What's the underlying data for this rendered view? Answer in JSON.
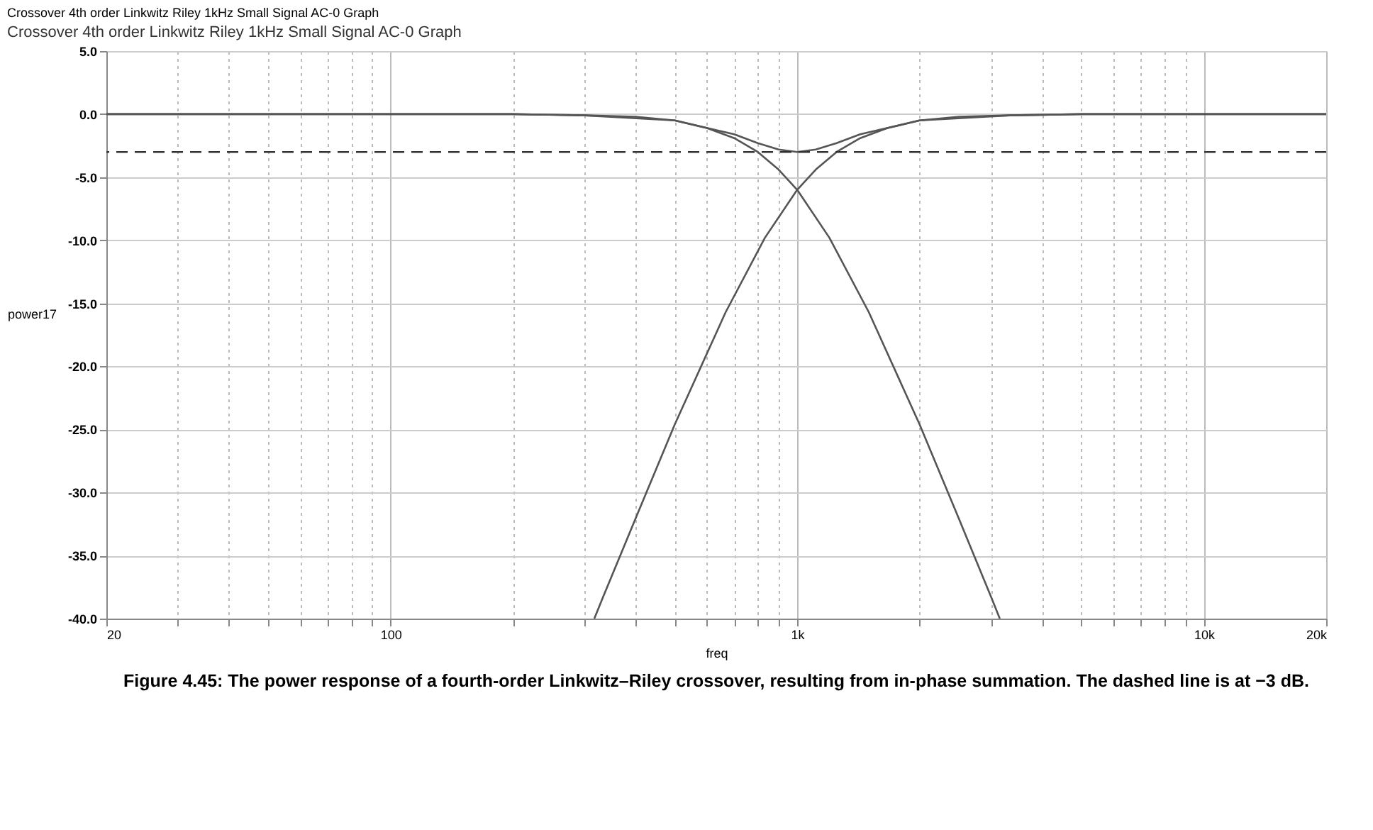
{
  "chart_data": {
    "type": "line",
    "title": "Crossover 4th order Linkwitz Riley 1kHz Small Signal AC-0 Graph",
    "subtitle": "Crossover 4th order Linkwitz Riley 1kHz Small Signal AC-0 Graph",
    "xlabel": "freq",
    "ylabel": "power17",
    "annotations": [
      "Figure 4.45: The power response of a fourth-order Linkwitz–Riley crossover, resulting from in-phase summation. The dashed line is at −3 dB."
    ],
    "log": "x",
    "grid": true,
    "marker": "none",
    "line_style": "solid",
    "xlim": [
      20,
      20000
    ],
    "xticks": [
      20,
      {
        "value": 30,
        "label": null
      },
      {
        "value": 40,
        "label": null
      },
      {
        "value": 50,
        "label": null
      },
      {
        "value": 60,
        "label": null
      },
      {
        "value": 70,
        "label": null
      },
      {
        "value": 80,
        "label": null
      },
      {
        "value": 90,
        "label": null
      },
      100,
      {
        "value": 200,
        "label": null
      },
      {
        "value": 300,
        "label": null
      },
      {
        "value": 400,
        "label": null
      },
      {
        "value": 500,
        "label": null
      },
      {
        "value": 600,
        "label": null
      },
      {
        "value": 700,
        "label": null
      },
      {
        "value": 800,
        "label": null
      },
      {
        "value": 900,
        "label": null
      },
      {
        "value": 1000,
        "label": "1k"
      },
      {
        "value": 2000,
        "label": null
      },
      {
        "value": 3000,
        "label": null
      },
      {
        "value": 4000,
        "label": null
      },
      {
        "value": 5000,
        "label": null
      },
      {
        "value": 6000,
        "label": null
      },
      {
        "value": 7000,
        "label": null
      },
      {
        "value": 8000,
        "label": null
      },
      {
        "value": 9000,
        "label": null
      },
      {
        "value": 10000,
        "label": "10k"
      },
      {
        "value": 20000,
        "label": "20k"
      }
    ],
    "ylim": [
      -40,
      5
    ],
    "yticks": [
      {
        "value": 5,
        "label": "5.0"
      },
      {
        "value": 0,
        "label": "0.0"
      },
      {
        "value": -5,
        "label": "-5.0"
      },
      {
        "value": -10,
        "label": "-10.0"
      },
      {
        "value": -15,
        "label": "-15.0"
      },
      {
        "value": -20,
        "label": "-20.0"
      },
      {
        "value": -25,
        "label": "-25.0"
      },
      {
        "value": -30,
        "label": "-30.0"
      },
      {
        "value": -35,
        "label": "-35.0"
      },
      {
        "value": -40,
        "label": "-40.0"
      }
    ],
    "ref_lines": [
      {
        "axis": "y",
        "value": -3,
        "color": "#333333",
        "line_style": "dashed"
      }
    ],
    "series": [
      {
        "color": "#555555",
        "x": [
          20,
          200,
          300,
          400,
          500,
          600,
          700,
          800,
          900,
          1000,
          1200,
          1500,
          2000,
          2500,
          3000,
          3150
        ],
        "values": [
          0,
          0,
          -0.1,
          -0.2,
          -0.5,
          -1.1,
          -1.9,
          -3.0,
          -4.4,
          -6.0,
          -9.8,
          -15.7,
          -24.6,
          -32.1,
          -38.3,
          -40.0
        ]
      },
      {
        "color": "#555555",
        "x": [
          317,
          333,
          400,
          500,
          667,
          833,
          1000,
          1111,
          1250,
          1429,
          1667,
          2000,
          2500,
          3333,
          5000,
          20000
        ],
        "values": [
          -40.0,
          -38.3,
          -32.1,
          -24.6,
          -15.7,
          -9.8,
          -6.0,
          -4.4,
          -3.0,
          -1.9,
          -1.1,
          -0.5,
          -0.2,
          -0.1,
          0,
          0
        ]
      },
      {
        "color": "#555555",
        "x": [
          20,
          200,
          300,
          500,
          700,
          800,
          900,
          1000,
          1111,
          1250,
          1429,
          2000,
          3333,
          5000,
          20000
        ],
        "values": [
          0,
          0,
          -0.1,
          -0.5,
          -1.6,
          -2.3,
          -2.8,
          -3.0,
          -2.8,
          -2.3,
          -1.6,
          -0.5,
          -0.1,
          0,
          0
        ]
      }
    ]
  }
}
